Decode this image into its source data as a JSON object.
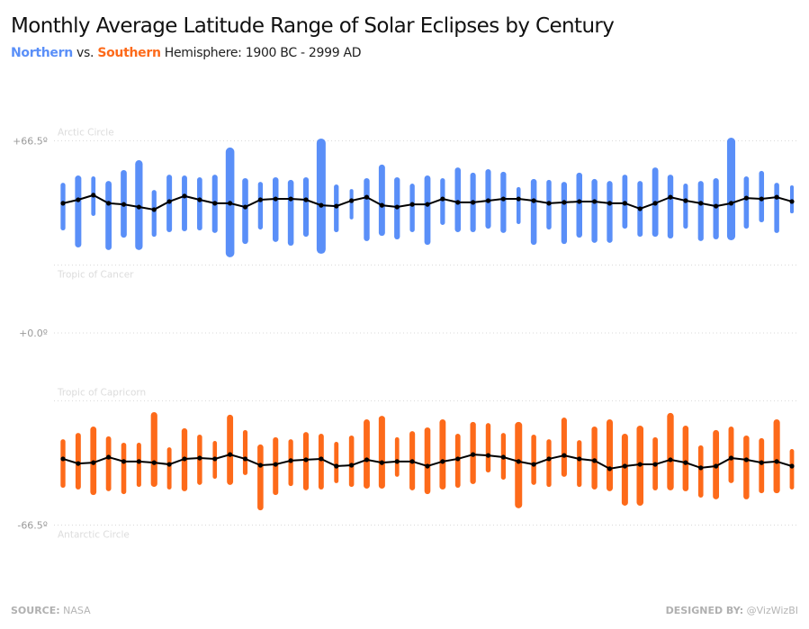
{
  "header": {
    "title": "Monthly Average Latitude Range of Solar Eclipses by Century",
    "subtitle_north": "Northern",
    "subtitle_vs": " vs. ",
    "subtitle_south": "Southern",
    "subtitle_rest": " Hemisphere: 1900 BC - 2999 AD"
  },
  "footer": {
    "source_label": "SOURCE:",
    "source_value": " NASA",
    "designed_label": "DESIGNED BY:",
    "designed_value": " @VizWizBI"
  },
  "chart_data": {
    "type": "range-bar-with-line",
    "title": "Monthly Average Latitude Range of Solar Eclipses by Century",
    "subtitle": "Northern vs. Southern Hemisphere: 1900 BC - 2999 AD",
    "xlabel": "",
    "ylabel": "",
    "ylim": [
      -90,
      90
    ],
    "grid": true,
    "y_ticks": [
      {
        "value": 66.5,
        "label": "+66.5º"
      },
      {
        "value": 0,
        "label": "+0.0º"
      },
      {
        "value": -66.5,
        "label": "-66.5º"
      }
    ],
    "reference_lines": [
      {
        "value": 66.5,
        "label": "Arctic Circle",
        "label_pos": "above"
      },
      {
        "value": 23.5,
        "label": "Tropic of Cancer",
        "label_pos": "below"
      },
      {
        "value": -23.5,
        "label": "Tropic of Capricorn",
        "label_pos": "above"
      },
      {
        "value": -66.5,
        "label": "Antarctic Circle",
        "label_pos": "below"
      }
    ],
    "series": [
      {
        "name": "Northern",
        "color": "#5a8ff8",
        "max": [
          52.0,
          54.5,
          54.2,
          52.6,
          56.4,
          59.8,
          49.5,
          54.8,
          54.5,
          53.9,
          54.8,
          64.2,
          53.6,
          52.3,
          53.9,
          53.0,
          53.9,
          67.3,
          51.4,
          49.8,
          53.6,
          58.3,
          53.9,
          51.7,
          54.5,
          53.6,
          57.3,
          55.5,
          56.7,
          55.8,
          50.5,
          53.3,
          53.0,
          52.3,
          55.5,
          53.3,
          52.6,
          54.8,
          52.6,
          57.3,
          54.8,
          51.7,
          52.6,
          53.6,
          67.6,
          54.2,
          56.1,
          52.0,
          51.1
        ],
        "min": [
          35.5,
          29.6,
          40.5,
          28.7,
          33.0,
          28.7,
          33.3,
          34.9,
          35.2,
          35.5,
          34.6,
          26.2,
          30.8,
          35.8,
          31.5,
          30.2,
          33.3,
          27.4,
          34.9,
          39.3,
          31.8,
          33.6,
          32.4,
          34.9,
          30.5,
          37.4,
          34.9,
          34.9,
          36.1,
          34.6,
          37.7,
          30.5,
          35.8,
          30.8,
          33.0,
          31.2,
          31.2,
          36.1,
          33.3,
          33.3,
          32.7,
          36.1,
          31.8,
          32.4,
          32.1,
          36.1,
          38.3,
          34.6,
          41.4
        ],
        "mean": [
          44.9,
          46.1,
          47.7,
          44.9,
          44.5,
          43.6,
          42.7,
          45.5,
          47.4,
          46.1,
          44.9,
          44.9,
          43.6,
          46.1,
          46.4,
          46.4,
          46.1,
          44.2,
          43.9,
          45.8,
          47.0,
          44.2,
          43.6,
          44.5,
          44.5,
          46.4,
          45.2,
          45.2,
          45.8,
          46.4,
          46.4,
          45.8,
          44.9,
          45.2,
          45.5,
          45.5,
          44.9,
          44.9,
          43.0,
          44.9,
          47.0,
          45.8,
          44.9,
          43.9,
          44.9,
          46.7,
          46.4,
          47.0,
          45.5
        ]
      },
      {
        "name": "Southern",
        "color": "#fd6a1a",
        "max": [
          -36.8,
          -34.6,
          -32.4,
          -35.8,
          -38.0,
          -38.0,
          -27.4,
          -39.6,
          -33.0,
          -35.2,
          -37.4,
          -28.3,
          -33.6,
          -38.6,
          -36.1,
          -36.8,
          -34.3,
          -34.9,
          -37.7,
          -35.5,
          -29.9,
          -28.7,
          -36.1,
          -34.0,
          -32.7,
          -29.9,
          -34.9,
          -30.8,
          -31.2,
          -34.6,
          -30.8,
          -35.2,
          -36.8,
          -29.3,
          -37.1,
          -32.4,
          -29.9,
          -34.9,
          -32.1,
          -36.1,
          -27.7,
          -32.1,
          -38.9,
          -33.6,
          -32.4,
          -35.5,
          -36.4,
          -29.9,
          -40.2
        ],
        "min": [
          -53.6,
          -54.2,
          -56.1,
          -54.8,
          -55.8,
          -53.3,
          -53.3,
          -54.2,
          -54.8,
          -52.6,
          -50.5,
          -52.6,
          -49.2,
          -61.4,
          -56.1,
          -53.0,
          -54.5,
          -54.2,
          -52.0,
          -53.3,
          -53.9,
          -53.9,
          -49.8,
          -54.5,
          -55.8,
          -54.2,
          -53.6,
          -52.3,
          -48.3,
          -50.8,
          -60.7,
          -52.6,
          -53.3,
          -49.8,
          -53.3,
          -54.2,
          -54.8,
          -59.8,
          -59.8,
          -54.5,
          -54.5,
          -54.8,
          -57.0,
          -57.6,
          -52.0,
          -57.6,
          -55.5,
          -55.5,
          -54.2
        ],
        "mean": [
          -43.6,
          -45.2,
          -44.9,
          -43.0,
          -44.5,
          -44.5,
          -44.9,
          -45.5,
          -43.6,
          -43.3,
          -43.6,
          -42.1,
          -43.6,
          -45.8,
          -45.5,
          -44.2,
          -43.9,
          -43.6,
          -46.1,
          -45.8,
          -43.9,
          -44.9,
          -44.5,
          -44.5,
          -46.1,
          -44.5,
          -43.6,
          -42.1,
          -42.4,
          -43.0,
          -44.5,
          -45.5,
          -43.6,
          -42.4,
          -43.6,
          -44.2,
          -47.0,
          -46.1,
          -45.5,
          -45.5,
          -43.9,
          -44.9,
          -46.7,
          -46.1,
          -43.3,
          -43.9,
          -44.9,
          -44.5,
          -46.1
        ]
      }
    ],
    "mean_line_color": "#000000",
    "count": 49
  }
}
